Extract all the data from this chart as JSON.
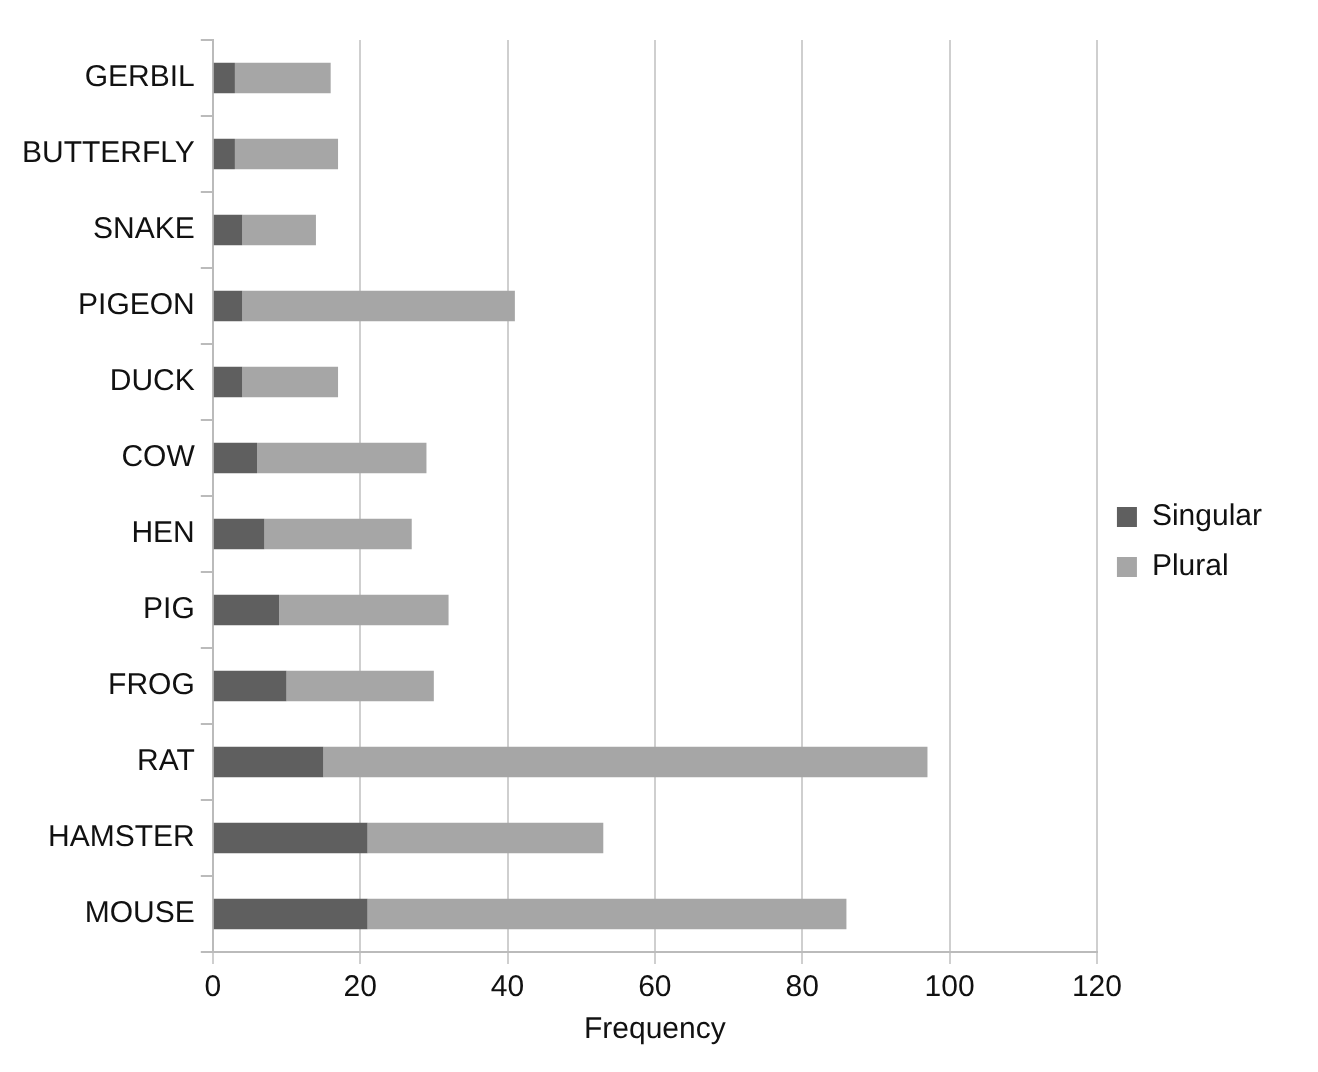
{
  "chart_data": {
    "type": "bar",
    "orientation": "horizontal",
    "stacked": true,
    "xlabel": "Frequency",
    "categories": [
      "GERBIL",
      "BUTTERFLY",
      "SNAKE",
      "PIGEON",
      "DUCK",
      "COW",
      "HEN",
      "PIG",
      "FROG",
      "RAT",
      "HAMSTER",
      "MOUSE"
    ],
    "series": [
      {
        "name": "Singular",
        "color": "#5f5f5f",
        "values": [
          3,
          3,
          4,
          4,
          4,
          6,
          7,
          9,
          10,
          15,
          21,
          21
        ]
      },
      {
        "name": "Plural",
        "color": "#a6a6a6",
        "values": [
          13,
          14,
          10,
          37,
          13,
          23,
          20,
          23,
          20,
          82,
          32,
          65
        ]
      }
    ],
    "xlim": [
      0,
      120
    ],
    "xticks": [
      0,
      20,
      40,
      60,
      80,
      100,
      120
    ],
    "grid": "x",
    "legend": "right"
  }
}
